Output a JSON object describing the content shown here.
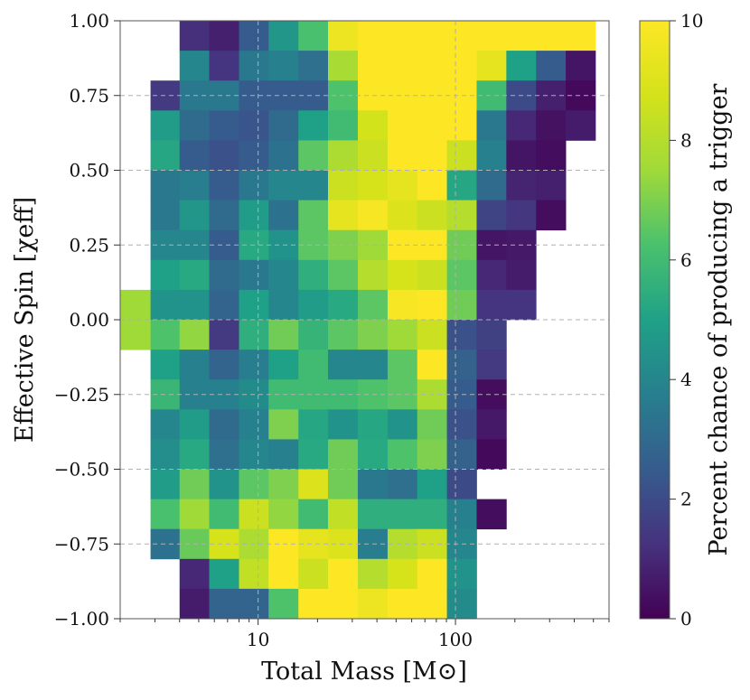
{
  "chart_data": {
    "type": "heatmap",
    "title": "",
    "xlabel": "Total Mass [M⊙]",
    "ylabel": "Effective Spin [χeff]",
    "x_scale": "log",
    "xlim": [
      2.0,
      600
    ],
    "ylim": [
      -1.0,
      1.0
    ],
    "x_ticks": [
      10,
      100
    ],
    "x_tick_labels": [
      "10",
      "100"
    ],
    "y_ticks": [
      1.0,
      0.75,
      0.5,
      0.25,
      0.0,
      -0.25,
      -0.5,
      -0.75,
      -1.0
    ],
    "y_tick_labels": [
      "1.00",
      "0.75",
      "0.50",
      "0.25",
      "0.00",
      "−0.25",
      "−0.50",
      "−0.75",
      "−1.00"
    ],
    "grid": true,
    "colormap": "viridis",
    "colorbar": {
      "label": "Percent chance of producing a trigger",
      "range": [
        0,
        10
      ],
      "ticks": [
        0,
        2,
        4,
        6,
        8,
        10
      ],
      "tick_labels": [
        "0",
        "2",
        "4",
        "6",
        "8",
        "10"
      ]
    },
    "x_bin_edges": [
      2.0,
      2.85,
      4.0,
      5.65,
      8.0,
      11.3,
      16.0,
      22.6,
      32.0,
      45.3,
      64.0,
      90.5,
      128.0,
      181.0,
      256.0,
      362.0,
      512.0
    ],
    "y_bin_edges": [
      -1.0,
      -0.9,
      -0.8,
      -0.7,
      -0.6,
      -0.5,
      -0.4,
      -0.3,
      -0.2,
      -0.1,
      0.0,
      0.1,
      0.2,
      0.3,
      0.4,
      0.5,
      0.6,
      0.7,
      0.8,
      0.9,
      1.0
    ],
    "rows_note": "values[0] is the top row (spin 0.9 to 1.0); null = empty bin",
    "values": [
      [
        null,
        null,
        1.2,
        0.8,
        2.5,
        4.6,
        6.2,
        9.5,
        10,
        10,
        10,
        10,
        10,
        10,
        10,
        10
      ],
      [
        null,
        null,
        4.0,
        1.3,
        3.5,
        3.8,
        3.2,
        7.7,
        10,
        10,
        10,
        10,
        9.3,
        5.0,
        2.5,
        0.5
      ],
      [
        null,
        1.5,
        3.5,
        3.5,
        2.5,
        2.5,
        2.5,
        6.3,
        10,
        10,
        10,
        10,
        6.0,
        2.0,
        0.8,
        0.2
      ],
      [
        null,
        4.8,
        3.0,
        2.5,
        2.3,
        3.0,
        5.0,
        6.0,
        8.7,
        10,
        10,
        10,
        3.5,
        1.0,
        0.4,
        0.7
      ],
      [
        null,
        5.2,
        2.5,
        2.2,
        2.5,
        3.3,
        6.5,
        7.8,
        8.5,
        10,
        10,
        8.5,
        3.8,
        0.5,
        0.3,
        null
      ],
      [
        null,
        3.5,
        3.7,
        2.5,
        3.5,
        4.0,
        4.0,
        8.5,
        8.8,
        9.3,
        10,
        5.2,
        3.0,
        0.9,
        0.8,
        null
      ],
      [
        null,
        3.5,
        4.6,
        3.0,
        4.8,
        3.3,
        6.5,
        9.3,
        9.8,
        9.0,
        8.5,
        8.0,
        1.8,
        1.4,
        0.3,
        null
      ],
      [
        null,
        4.0,
        4.0,
        2.5,
        5.3,
        4.5,
        6.5,
        7.0,
        7.5,
        10,
        10,
        6.8,
        0.5,
        0.6,
        null,
        null
      ],
      [
        null,
        5.0,
        5.3,
        3.0,
        3.5,
        4.0,
        5.5,
        6.5,
        8.0,
        8.8,
        8.5,
        6.5,
        1.0,
        0.7,
        null,
        null
      ],
      [
        7.5,
        4.5,
        4.5,
        2.8,
        5.0,
        4.0,
        4.8,
        5.3,
        6.5,
        9.8,
        10,
        6.8,
        1.3,
        1.3,
        null,
        null
      ],
      [
        7.5,
        6.3,
        7.3,
        1.5,
        5.5,
        6.8,
        5.7,
        6.5,
        7.0,
        7.5,
        8.5,
        2.2,
        1.7,
        null,
        null,
        null
      ],
      [
        null,
        5.0,
        3.8,
        2.8,
        3.7,
        5.0,
        6.0,
        4.0,
        4.0,
        6.5,
        10,
        2.7,
        1.5,
        null,
        null,
        null
      ],
      [
        null,
        5.8,
        3.8,
        3.8,
        4.2,
        6.0,
        6.0,
        6.0,
        6.3,
        6.5,
        7.8,
        2.5,
        0.3,
        null,
        null,
        null
      ],
      [
        null,
        4.0,
        4.8,
        3.0,
        3.8,
        7.0,
        5.2,
        4.5,
        5.2,
        4.5,
        6.8,
        2.2,
        0.6,
        null,
        null,
        null
      ],
      [
        null,
        4.3,
        5.3,
        3.2,
        4.0,
        3.8,
        5.3,
        6.8,
        5.3,
        6.3,
        7.0,
        2.7,
        0.2,
        null,
        null,
        null
      ],
      [
        null,
        4.8,
        6.8,
        4.5,
        6.5,
        7.0,
        9.0,
        6.8,
        3.5,
        3.2,
        5.0,
        2.0,
        null,
        null,
        null,
        null
      ],
      [
        null,
        6.2,
        7.5,
        6.0,
        8.5,
        7.3,
        6.0,
        8.3,
        5.5,
        5.5,
        5.5,
        3.8,
        0.3,
        null,
        null,
        null
      ],
      [
        null,
        3.3,
        6.7,
        8.8,
        7.8,
        10,
        9.3,
        9.0,
        3.7,
        8.0,
        8.5,
        4.0,
        null,
        null,
        null,
        null
      ],
      [
        null,
        null,
        1.0,
        5.0,
        8.3,
        10,
        8.5,
        10,
        8.0,
        8.8,
        10,
        4.5,
        null,
        null,
        null,
        null
      ],
      [
        null,
        null,
        0.7,
        2.8,
        2.8,
        6.3,
        10,
        10,
        9.5,
        10,
        10,
        4.2,
        null,
        null,
        null,
        null
      ]
    ]
  }
}
